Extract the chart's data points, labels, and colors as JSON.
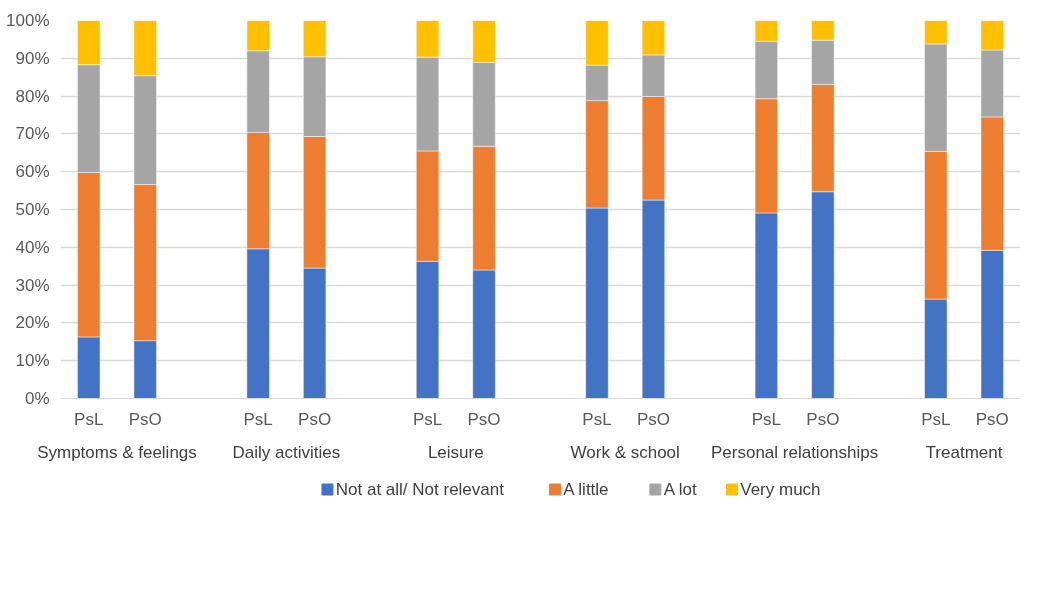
{
  "chart_data": {
    "type": "bar",
    "stacked": true,
    "categories": [
      "PsL",
      "PsO",
      null,
      "PsL",
      "PsO",
      null,
      "PsL",
      "PsO",
      null,
      "PsL",
      "PsO",
      null,
      "PsL",
      "PsO",
      null,
      "PsL",
      "PsO"
    ],
    "annotations": [
      "Symptoms & feelings",
      "Daily activities",
      "Leisure",
      "Work & school",
      "Personal relationships",
      "Treatment"
    ],
    "series": [
      {
        "name": "Not at all/ Not relevant",
        "color": "#4472c4",
        "values": [
          16.3,
          15.3,
          null,
          39.6,
          34.5,
          null,
          36.3,
          34.0,
          null,
          50.4,
          52.5,
          null,
          49.1,
          54.7,
          null,
          26.3,
          39.2
        ]
      },
      {
        "name": "A little",
        "color": "#ed7d31",
        "values": [
          43.5,
          41.3,
          null,
          30.8,
          34.8,
          null,
          29.2,
          32.7,
          null,
          28.4,
          27.4,
          null,
          30.2,
          28.4,
          null,
          39.1,
          35.3
        ]
      },
      {
        "name": "A lot",
        "color": "#a5a5a5",
        "values": [
          28.5,
          28.8,
          null,
          21.6,
          21.1,
          null,
          24.8,
          22.2,
          null,
          9.4,
          11.0,
          null,
          15.2,
          11.7,
          null,
          28.4,
          17.7
        ]
      },
      {
        "name": "Very much",
        "color": "#ffc000",
        "values": [
          11.7,
          14.6,
          null,
          8.0,
          9.6,
          null,
          9.7,
          11.1,
          null,
          11.8,
          9.1,
          null,
          5.5,
          5.2,
          null,
          6.2,
          7.8
        ]
      }
    ],
    "ylim": [
      0,
      100
    ],
    "yticks": [
      {
        "value": 0,
        "label": "0%"
      },
      {
        "value": 10,
        "label": "10%"
      },
      {
        "value": 20,
        "label": "20%"
      },
      {
        "value": 30,
        "label": "30%"
      },
      {
        "value": 40,
        "label": "40%"
      },
      {
        "value": 50,
        "label": "50%"
      },
      {
        "value": 60,
        "label": "60%"
      },
      {
        "value": 70,
        "label": "70%"
      },
      {
        "value": 80,
        "label": "80%"
      },
      {
        "value": 90,
        "label": "90%"
      },
      {
        "value": 100,
        "label": "100%"
      }
    ],
    "grid": "y",
    "legend": "bottom"
  }
}
